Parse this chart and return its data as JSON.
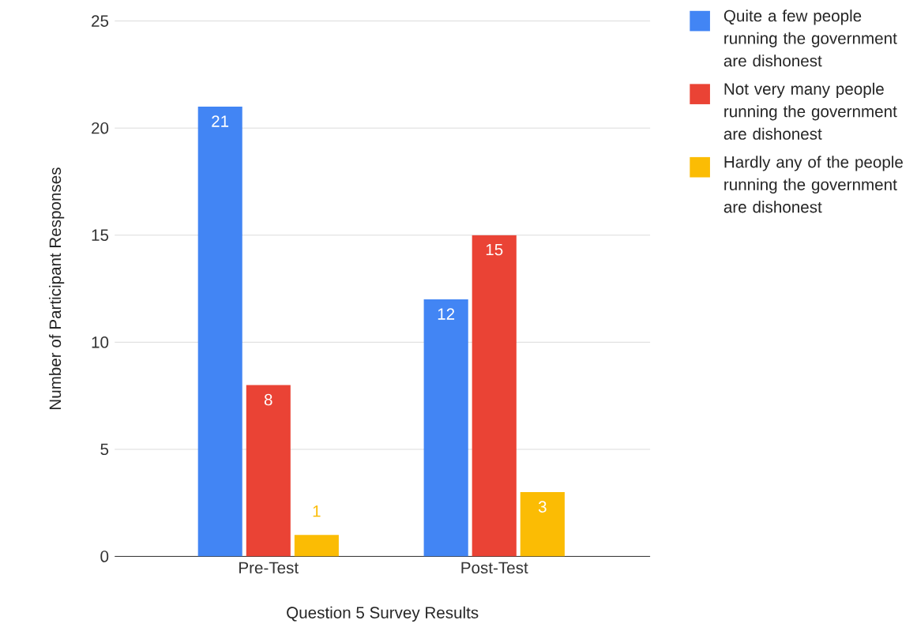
{
  "chart_data": {
    "type": "bar",
    "xlabel": "Question 5 Survey Results",
    "ylabel": "Number of Participant Responses",
    "categories": [
      "Pre-Test",
      "Post-Test"
    ],
    "series": [
      {
        "name": "Quite a few people running the government are dishonest",
        "color": "#4285f4",
        "values": [
          21,
          12
        ]
      },
      {
        "name": "Not very many people running the government are dishonest",
        "color": "#ea4335",
        "values": [
          8,
          15
        ]
      },
      {
        "name": "Hardly any of the people running the government are dishonest",
        "color": "#fbbc04",
        "values": [
          1,
          3
        ]
      }
    ],
    "ylim": [
      0,
      25
    ],
    "yticks": [
      0,
      5,
      10,
      15,
      20,
      25
    ],
    "grid": "y",
    "legend": "right",
    "data_labels": true
  }
}
